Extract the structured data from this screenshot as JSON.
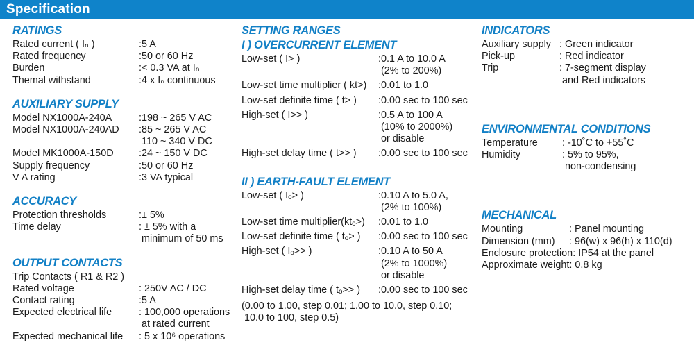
{
  "header": {
    "title": "Specification"
  },
  "colors": {
    "header_bg": "#0f83ca",
    "heading_blue": "#1280c6",
    "body_text": "#1b1b1b",
    "page_bg": "#ffffff"
  },
  "left": {
    "ratings": {
      "heading": "RATINGS",
      "rows": [
        {
          "label": "Rated current ( Iₙ )",
          "value": ":5 A"
        },
        {
          "label": "Rated frequency",
          "value": ":50 or 60 Hz"
        },
        {
          "label": "Burden",
          "value": ":< 0.3 VA at Iₙ"
        },
        {
          "label": "Themal withstand",
          "value": ":4 x Iₙ continuous"
        }
      ]
    },
    "auxiliary": {
      "heading": "AUXILIARY SUPPLY",
      "rows": [
        {
          "label": "Model NX1000A-240A",
          "value": ":198 ~ 265 V AC"
        },
        {
          "label": "Model NX1000A-240AD",
          "value": ":85 ~ 265 V AC\n 110 ~ 340 V DC"
        },
        {
          "label": "Model MK1000A-150D",
          "value": ":24 ~ 150 V DC"
        },
        {
          "label": "Supply frequency",
          "value": ":50 or 60 Hz"
        },
        {
          "label": "V A rating",
          "value": ":3 VA typical"
        }
      ]
    },
    "accuracy": {
      "heading": "ACCURACY",
      "rows": [
        {
          "label": "Protection thresholds",
          "value": ":± 5%"
        },
        {
          "label": "Time delay",
          "value": ": ± 5% with a\n minimum of 50 ms"
        }
      ]
    },
    "output_contacts": {
      "heading": "OUTPUT CONTACTS",
      "rows": [
        {
          "label": "Trip Contacts ( R1 & R2 )",
          "value": ""
        },
        {
          "label": "Rated voltage",
          "value": ": 250V AC / DC"
        },
        {
          "label": "Contact rating",
          "value": ":5 A"
        },
        {
          "label": "Expected electrical life",
          "value": ": 100,000 operations\n at rated current"
        },
        {
          "label": "Expected mechanical life",
          "value": ": 5 x 10⁶ operations"
        }
      ]
    }
  },
  "middle": {
    "setting_ranges_heading": "SETTING RANGES",
    "overcurrent": {
      "heading": "I ) OVERCURRENT ELEMENT",
      "rows": [
        {
          "label": "Low-set ( I> )",
          "value": ":0.1 A to 10.0 A\n (2% to 200%)"
        },
        {
          "label": "Low-set time multiplier ( kt>)",
          "value": ":0.01 to 1.0"
        },
        {
          "label": "Low-set definite time ( t> )",
          "value": ":0.00 sec to 100 sec"
        },
        {
          "label": "High-set ( I>> )",
          "value": ":0.5 A to 100 A\n (10% to 2000%)\n or disable"
        },
        {
          "label": "High-set delay time ( t>> )",
          "value": ":0.00 sec to 100 sec"
        }
      ]
    },
    "earth_fault": {
      "heading": "II ) EARTH-FAULT ELEMENT",
      "rows": [
        {
          "label": "Low-set ( Iₒ> )",
          "value": ":0.10 A to 5.0 A,\n (2% to 100%)"
        },
        {
          "label": "Low-set time multiplier(ktₒ>)",
          "value": ":0.01 to 1.0"
        },
        {
          "label": "Low-set definite time ( tₒ> )",
          "value": ":0.00 sec to 100 sec"
        },
        {
          "label": "High-set ( Iₒ>> )",
          "value": ":0.10 A to 50 A\n (2% to 1000%)\n or disable"
        },
        {
          "label": "High-set delay time ( tₒ>> )",
          "value": ":0.00 sec to 100 sec"
        }
      ]
    },
    "note": "(0.00 to 1.00, step 0.01; 1.00 to 10.0, step 0.10;\n 10.0 to 100, step 0.5)"
  },
  "right": {
    "indicators": {
      "heading": "INDICATORS",
      "rows": [
        {
          "label": "Auxiliary supply",
          "value": ": Green indicator"
        },
        {
          "label": "Pick-up",
          "value": ": Red indicator"
        },
        {
          "label": "Trip",
          "value": ": 7-segment display\n and Red indicators"
        }
      ]
    },
    "environmental": {
      "heading": "ENVIRONMENTAL CONDITIONS",
      "rows": [
        {
          "label": "Temperature",
          "value": ": -10˚C to +55˚C"
        },
        {
          "label": "Humidity",
          "value": ": 5% to 95%,\n non-condensing"
        }
      ]
    },
    "mechanical": {
      "heading": "MECHANICAL",
      "rows": [
        {
          "label": "Mounting",
          "value": ": Panel mounting"
        },
        {
          "label": "Dimension (mm)",
          "value": ": 96(w) x 96(h) x 110(d)"
        },
        {
          "label": "Enclosure protection",
          "value": ": IP54 at the panel"
        },
        {
          "label": "Approximate weight",
          "value": ": 0.8 kg"
        }
      ]
    }
  }
}
